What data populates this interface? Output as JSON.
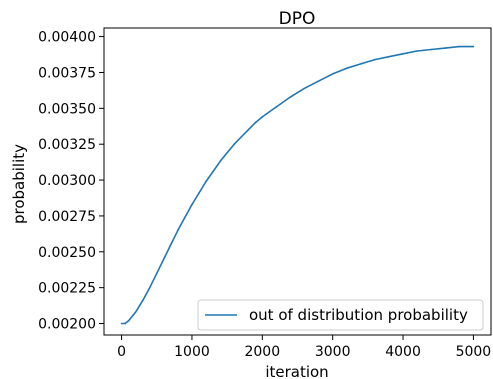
{
  "chart_data": {
    "type": "line",
    "title": "DPO",
    "xlabel": "iteration",
    "ylabel": "probability",
    "xlim": [
      -250,
      5250
    ],
    "ylim": [
      0.00192,
      0.00406
    ],
    "xticks": [
      0,
      1000,
      2000,
      3000,
      4000,
      5000
    ],
    "xtick_labels": [
      "0",
      "1000",
      "2000",
      "3000",
      "4000",
      "5000"
    ],
    "yticks": [
      0.002,
      0.00225,
      0.0025,
      0.00275,
      0.003,
      0.00325,
      0.0035,
      0.00375,
      0.004
    ],
    "ytick_labels": [
      "0.00200",
      "0.00225",
      "0.00250",
      "0.00275",
      "0.00300",
      "0.00325",
      "0.00350",
      "0.00375",
      "0.00400"
    ],
    "grid": false,
    "legend_position": "lower right",
    "series": [
      {
        "name": "out of distribution probability",
        "color": "#1f77b4",
        "x": [
          0,
          50,
          100,
          200,
          300,
          400,
          500,
          600,
          700,
          800,
          900,
          1000,
          1100,
          1200,
          1300,
          1400,
          1500,
          1600,
          1700,
          1800,
          1900,
          2000,
          2200,
          2400,
          2600,
          2800,
          3000,
          3200,
          3400,
          3600,
          3800,
          4000,
          4200,
          4400,
          4600,
          4800,
          5000
        ],
        "y": [
          0.002,
          0.002,
          0.00202,
          0.00208,
          0.00216,
          0.00225,
          0.00235,
          0.00245,
          0.00255,
          0.00265,
          0.00274,
          0.00283,
          0.00291,
          0.00299,
          0.00306,
          0.00313,
          0.00319,
          0.00325,
          0.0033,
          0.00335,
          0.0034,
          0.00344,
          0.00351,
          0.00358,
          0.00364,
          0.00369,
          0.00374,
          0.00378,
          0.00381,
          0.00384,
          0.00386,
          0.00388,
          0.0039,
          0.00391,
          0.00392,
          0.00393,
          0.00393
        ]
      }
    ]
  }
}
